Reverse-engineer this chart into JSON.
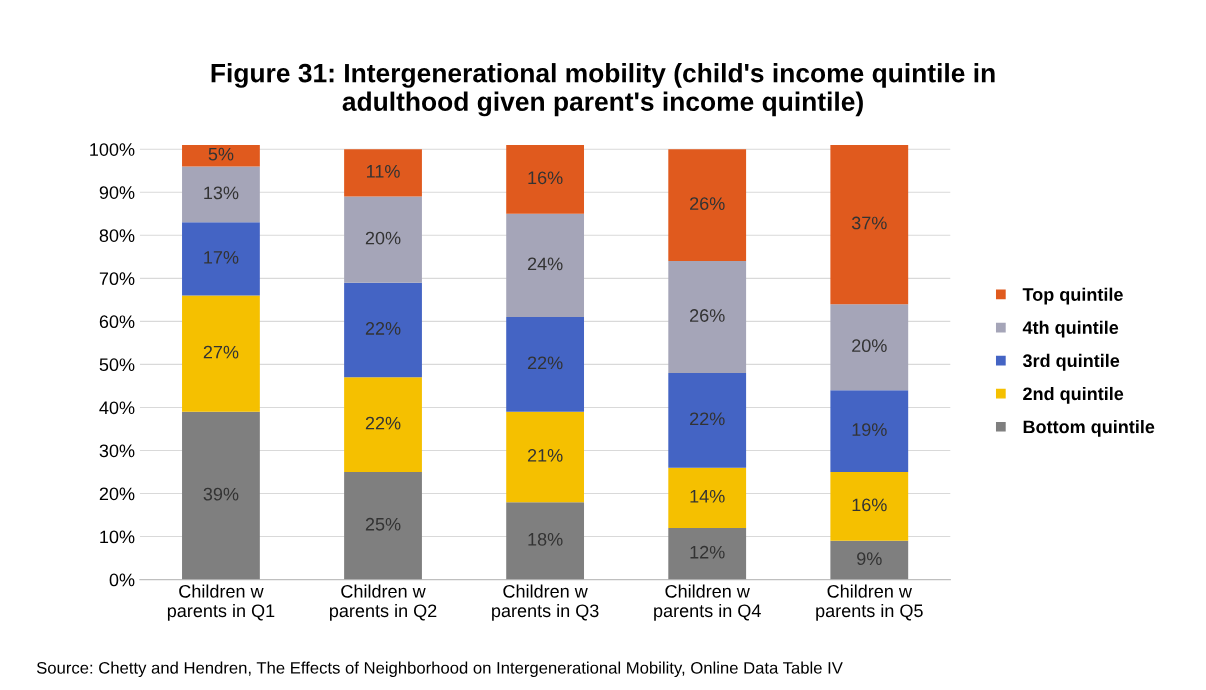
{
  "chart_data": {
    "type": "bar",
    "stacked": true,
    "title": "Figure 31: Intergenerational mobility (child's income quintile in\nadulthood given parent's income quintile)",
    "categories": [
      "Children w\nparents in Q1",
      "Children w\nparents in Q2",
      "Children w\nparents in Q3",
      "Children w\nparents in Q4",
      "Children w\nparents in Q5"
    ],
    "series": [
      {
        "name": "Bottom quintile",
        "color": "#7f7f7f",
        "values": [
          39,
          25,
          18,
          12,
          9
        ],
        "value_labels": [
          "39%",
          "25%",
          "18%",
          "12%",
          "9%"
        ]
      },
      {
        "name": "2nd quintile",
        "color": "#f5c000",
        "values": [
          27,
          22,
          21,
          14,
          16
        ],
        "value_labels": [
          "27%",
          "22%",
          "21%",
          "14%",
          "16%"
        ]
      },
      {
        "name": "3rd quintile",
        "color": "#4464c4",
        "values": [
          17,
          22,
          22,
          22,
          19
        ],
        "value_labels": [
          "17%",
          "22%",
          "22%",
          "22%",
          "19%"
        ]
      },
      {
        "name": "4th quintile",
        "color": "#a5a5b8",
        "values": [
          13,
          20,
          24,
          26,
          20
        ],
        "value_labels": [
          "13%",
          "20%",
          "24%",
          "26%",
          "20%"
        ]
      },
      {
        "name": "Top quintile",
        "color": "#e05a1e",
        "values": [
          5,
          11,
          16,
          26,
          37
        ],
        "value_labels": [
          "5%",
          "11%",
          "16%",
          "26%",
          "37%"
        ]
      }
    ],
    "ylim": [
      0,
      101
    ],
    "yticks": [
      {
        "value": 0,
        "label": "0%"
      },
      {
        "value": 10,
        "label": "10%"
      },
      {
        "value": 20,
        "label": "20%"
      },
      {
        "value": 30,
        "label": "30%"
      },
      {
        "value": 40,
        "label": "40%"
      },
      {
        "value": 50,
        "label": "50%"
      },
      {
        "value": 60,
        "label": "60%"
      },
      {
        "value": 70,
        "label": "70%"
      },
      {
        "value": 80,
        "label": "80%"
      },
      {
        "value": 90,
        "label": "90%"
      },
      {
        "value": 100,
        "label": "100%"
      }
    ],
    "grid": "y",
    "legend": "right",
    "annotations": [
      "Source: Chetty and Hendren, The Effects of Neighborhood on Intergenerational Mobility, Online Data Table IV"
    ]
  }
}
